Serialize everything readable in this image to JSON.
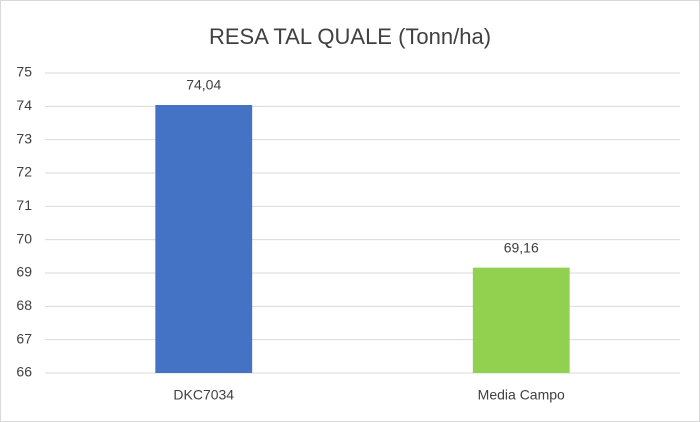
{
  "chart_data": {
    "type": "bar",
    "title": "RESA TAL QUALE (Tonn/ha)",
    "categories": [
      "DKC7034",
      "Media Campo"
    ],
    "values": [
      74.04,
      69.16
    ],
    "value_labels": [
      "74,04",
      "69,16"
    ],
    "colors": [
      "#4472c4",
      "#92d050"
    ],
    "ylim": [
      66,
      75
    ],
    "yticks": [
      66,
      67,
      68,
      69,
      70,
      71,
      72,
      73,
      74,
      75
    ],
    "grid": true
  }
}
